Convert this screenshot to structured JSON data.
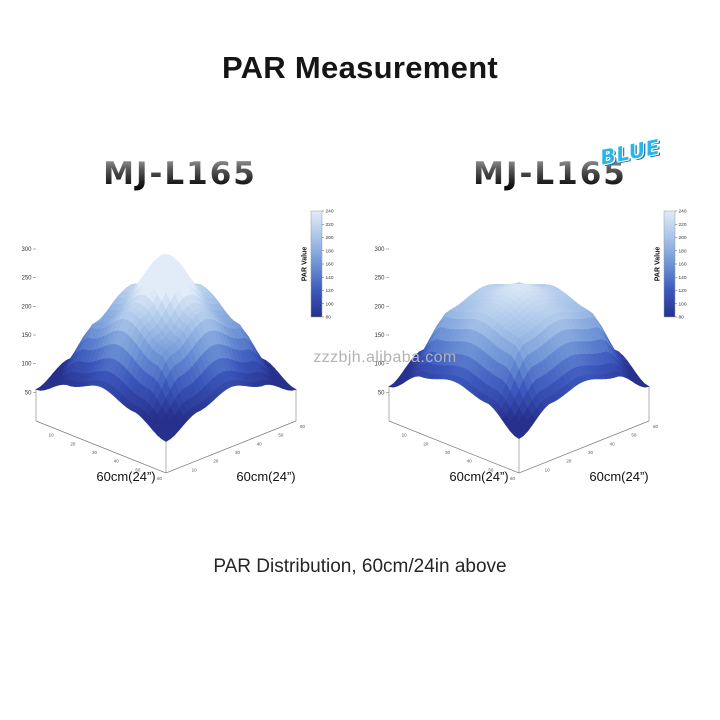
{
  "page": {
    "title": "PAR Measurement",
    "caption": "PAR Distribution, 60cm/24in above",
    "watermark": "zzzbjh.alibaba.com"
  },
  "products": [
    {
      "logo": "MJ-L165",
      "badge": ""
    },
    {
      "logo": "MJ-L165",
      "badge": "BLUE"
    }
  ],
  "colors": {
    "background": "#ffffff",
    "title_text": "#151515",
    "badge_blue": "#29b6ea",
    "watermark_gray": "#b3b3b3",
    "colormap_stops": [
      [
        0,
        "#27318d"
      ],
      [
        0.25,
        "#3c58bd"
      ],
      [
        0.5,
        "#6e93d6"
      ],
      [
        0.75,
        "#a8c4e9"
      ],
      [
        1,
        "#e1ecf8"
      ]
    ]
  },
  "chart_data": [
    {
      "type": "surface",
      "title": "MJ-L165 PAR distribution",
      "xlabel": "60cm(24”)",
      "ylabel": "60cm(24”)",
      "zlabel": "",
      "x_ticks": [
        10,
        20,
        30,
        40,
        50,
        60
      ],
      "y_ticks": [
        10,
        20,
        30,
        40,
        50,
        60
      ],
      "z_ticks": [
        50,
        100,
        150,
        200,
        250,
        300
      ],
      "zlim": [
        0,
        300
      ],
      "colorbar": {
        "label": "PAR Value",
        "min": 80,
        "max": 240,
        "ticks": [
          80,
          100,
          120,
          140,
          160,
          180,
          200,
          220,
          240
        ]
      },
      "peak_par": 290,
      "corner_par": 55,
      "surface_par_grid": [
        [
          55,
          85,
          105,
          85,
          55
        ],
        [
          85,
          175,
          215,
          175,
          85
        ],
        [
          105,
          215,
          290,
          215,
          105
        ],
        [
          85,
          175,
          215,
          175,
          85
        ],
        [
          55,
          85,
          105,
          85,
          55
        ]
      ]
    },
    {
      "type": "surface",
      "title": "MJ-L165 BLUE PAR distribution",
      "xlabel": "60cm(24”)",
      "ylabel": "60cm(24”)",
      "zlabel": "",
      "x_ticks": [
        10,
        20,
        30,
        40,
        50,
        60
      ],
      "y_ticks": [
        10,
        20,
        30,
        40,
        50,
        60
      ],
      "z_ticks": [
        50,
        100,
        150,
        200,
        250,
        300
      ],
      "zlim": [
        0,
        300
      ],
      "colorbar": {
        "label": "PAR Value",
        "min": 80,
        "max": 240,
        "ticks": [
          80,
          100,
          120,
          140,
          160,
          180,
          200,
          220,
          240
        ]
      },
      "peak_par": 235,
      "corner_par": 60,
      "surface_par_grid": [
        [
          60,
          100,
          115,
          100,
          60
        ],
        [
          100,
          195,
          212,
          195,
          100
        ],
        [
          115,
          212,
          235,
          212,
          115
        ],
        [
          100,
          195,
          212,
          195,
          100
        ],
        [
          60,
          100,
          115,
          100,
          60
        ]
      ]
    }
  ]
}
